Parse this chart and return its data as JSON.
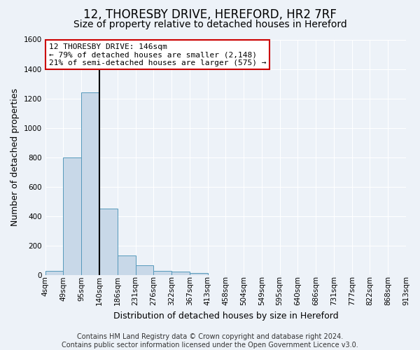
{
  "title": "12, THORESBY DRIVE, HEREFORD, HR2 7RF",
  "subtitle": "Size of property relative to detached houses in Hereford",
  "xlabel": "Distribution of detached houses by size in Hereford",
  "ylabel": "Number of detached properties",
  "bin_labels": [
    "4sqm",
    "49sqm",
    "95sqm",
    "140sqm",
    "186sqm",
    "231sqm",
    "276sqm",
    "322sqm",
    "367sqm",
    "413sqm",
    "458sqm",
    "504sqm",
    "549sqm",
    "595sqm",
    "640sqm",
    "686sqm",
    "731sqm",
    "777sqm",
    "822sqm",
    "868sqm",
    "913sqm"
  ],
  "bar_values": [
    25,
    800,
    1240,
    450,
    130,
    65,
    25,
    20,
    15,
    0,
    0,
    0,
    0,
    0,
    0,
    0,
    0,
    0,
    0,
    0
  ],
  "bar_color": "#c8d8e8",
  "bar_edge_color": "#5599bb",
  "vline_color": "#000000",
  "property_label": "12 THORESBY DRIVE: 146sqm",
  "annotation_line1": "← 79% of detached houses are smaller (2,148)",
  "annotation_line2": "21% of semi-detached houses are larger (575) →",
  "annotation_box_color": "#ffffff",
  "annotation_box_edge": "#cc0000",
  "ylim": [
    0,
    1600
  ],
  "yticks": [
    0,
    200,
    400,
    600,
    800,
    1000,
    1200,
    1400,
    1600
  ],
  "bg_color": "#edf2f8",
  "plot_bg_color": "#edf2f8",
  "footer": "Contains HM Land Registry data © Crown copyright and database right 2024.\nContains public sector information licensed under the Open Government Licence v3.0.",
  "title_fontsize": 12,
  "subtitle_fontsize": 10,
  "axis_label_fontsize": 9,
  "tick_fontsize": 7.5,
  "footer_fontsize": 7
}
